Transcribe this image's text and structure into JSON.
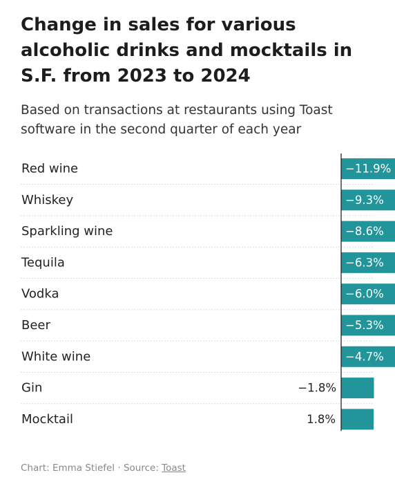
{
  "title": "Change in sales for various alcoholic drinks and mocktails in S.F. from 2023 to 2024",
  "subtitle": "Based on transactions at restaurants using Toast software in the second quarter of each year",
  "footer": {
    "credit": "Chart: Emma Stiefel",
    "separator": " · ",
    "source_prefix": "Source: ",
    "source": "Toast"
  },
  "colors": {
    "bar": "#21959a",
    "zero_line": "#222222",
    "divider": "#cccccc"
  },
  "chart_data": {
    "type": "bar",
    "orientation": "horizontal",
    "categories": [
      "Red wine",
      "Whiskey",
      "Sparkling wine",
      "Tequila",
      "Vodka",
      "Beer",
      "White wine",
      "Gin",
      "Mocktail"
    ],
    "values": [
      -11.9,
      -9.3,
      -8.6,
      -6.3,
      -6.0,
      -5.3,
      -4.7,
      -1.8,
      1.8
    ],
    "value_labels": [
      "−11.9%",
      "−9.3%",
      "−8.6%",
      "−6.3%",
      "−6.0%",
      "−5.3%",
      "−4.7%",
      "−1.8%",
      "1.8%"
    ],
    "xlim": [
      -11.9,
      1.8
    ],
    "unit": "%",
    "grid": false
  }
}
